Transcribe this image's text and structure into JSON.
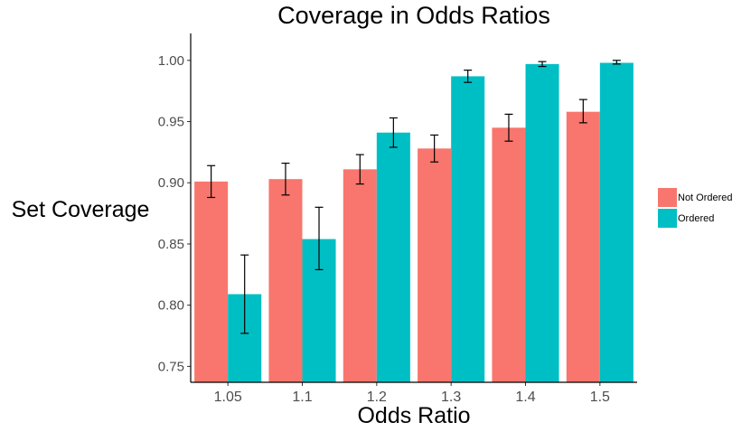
{
  "chart_data": {
    "type": "bar",
    "title": "Coverage in Odds Ratios",
    "xlabel": "Odds Ratio",
    "ylabel": "Set Coverage",
    "categories": [
      "1.05",
      "1.1",
      "1.2",
      "1.3",
      "1.4",
      "1.5"
    ],
    "series": [
      {
        "name": "Not Ordered",
        "color": "#F8766D",
        "values": [
          0.901,
          0.903,
          0.911,
          0.928,
          0.945,
          0.958
        ],
        "error_low": [
          0.888,
          0.89,
          0.899,
          0.917,
          0.934,
          0.949
        ],
        "error_high": [
          0.914,
          0.916,
          0.923,
          0.939,
          0.956,
          0.968
        ]
      },
      {
        "name": "Ordered",
        "color": "#00BFC4",
        "values": [
          0.809,
          0.854,
          0.941,
          0.987,
          0.997,
          0.998
        ],
        "error_low": [
          0.777,
          0.829,
          0.929,
          0.982,
          0.995,
          0.997
        ],
        "error_high": [
          0.841,
          0.88,
          0.953,
          0.992,
          0.999,
          1.0
        ]
      }
    ],
    "ylim": [
      0.737,
      1.022
    ],
    "yticks": [
      "0.75",
      "0.80",
      "0.85",
      "0.90",
      "0.95",
      "1.00"
    ],
    "ytick_values": [
      0.75,
      0.8,
      0.85,
      0.9,
      0.95,
      1.0
    ],
    "grid": false,
    "legend_position": "right"
  }
}
